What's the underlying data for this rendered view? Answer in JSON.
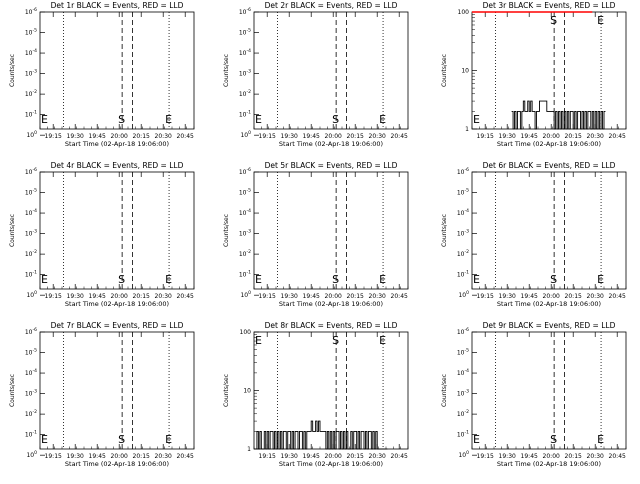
{
  "x_tick_labels": [
    "19:15",
    "19:30",
    "19:45",
    "20:00",
    "20:15",
    "20:30",
    "20:45"
  ],
  "y_tick_labels_log": [
    "10^0",
    "10^-1",
    "10^-2",
    "10^-3",
    "10^-4",
    "10^-5",
    "10^-6"
  ],
  "y_tick_labels_counts": [
    "1",
    "10",
    "100"
  ],
  "xlabel": "Start Time (02-Apr-18 19:06:00)",
  "ylabel": "Counts/sec",
  "markers": {
    "s": "S",
    "e": "E"
  },
  "colors": {
    "events": "#000000",
    "lld": "#ff0000"
  },
  "chart_data": [
    {
      "type": "line",
      "title": "Det 1r BLACK = Events, RED = LLD",
      "y_scale": "log",
      "ylim": [
        0.5,
        1e-06
      ],
      "series": []
    },
    {
      "type": "line",
      "title": "Det 2r BLACK = Events, RED = LLD",
      "y_scale": "log",
      "ylim": [
        0.5,
        1e-06
      ],
      "series": []
    },
    {
      "type": "line",
      "title": "Det 3r BLACK = Events, RED = LLD",
      "y_scale": "log",
      "ylim": [
        1,
        100
      ],
      "series": [
        {
          "name": "Events",
          "color": "#000000",
          "x": [
            "19:33",
            "19:34",
            "19:35",
            "19:36",
            "19:37",
            "19:38",
            "19:39",
            "19:40",
            "19:41",
            "19:42",
            "19:43",
            "19:44",
            "19:45",
            "19:46",
            "19:47",
            "19:48",
            "19:49",
            "19:50",
            "19:51",
            "19:52",
            "19:53",
            "19:54",
            "19:55",
            "19:56",
            "19:57",
            "19:58",
            "19:59",
            "20:00",
            "20:01",
            "20:02",
            "20:03",
            "20:04",
            "20:05",
            "20:06",
            "20:07",
            "20:08",
            "20:09",
            "20:10",
            "20:11",
            "20:12",
            "20:13",
            "20:14",
            "20:15",
            "20:16",
            "20:17",
            "20:18",
            "20:19",
            "20:20",
            "20:21",
            "20:22",
            "20:23",
            "20:24",
            "20:25",
            "20:26",
            "20:27",
            "20:28",
            "20:29",
            "20:30",
            "20:31",
            "20:32",
            "20:33",
            "20:34",
            "20:35",
            "20:36",
            "20:37"
          ],
          "y": [
            2,
            1,
            2,
            1,
            2,
            2,
            1,
            2,
            3,
            2,
            2,
            3,
            2,
            3,
            2,
            2,
            1,
            2,
            2,
            3,
            3,
            3,
            3,
            3,
            2,
            2,
            2,
            2,
            2,
            1,
            2,
            1,
            2,
            1,
            2,
            1,
            2,
            1,
            2,
            1,
            2,
            2,
            1,
            2,
            1,
            2,
            2,
            1,
            2,
            1,
            2,
            1,
            2,
            2,
            1,
            2,
            1,
            2,
            1,
            2,
            1,
            2,
            1,
            2,
            2
          ]
        },
        {
          "name": "LLD",
          "color": "#ff0000",
          "x": [
            "19:06",
            "19:10",
            "19:14",
            "19:18",
            "19:22",
            "19:26",
            "20:00",
            "20:05",
            "20:12",
            "20:16",
            "20:20",
            "20:24",
            "20:28"
          ],
          "y": [
            100,
            100,
            100,
            100,
            100,
            100,
            100,
            100,
            100,
            100,
            100,
            100,
            100
          ]
        }
      ]
    },
    {
      "type": "line",
      "title": "Det 4r BLACK = Events, RED = LLD",
      "y_scale": "log",
      "ylim": [
        0.5,
        1e-06
      ],
      "series": []
    },
    {
      "type": "line",
      "title": "Det 5r BLACK = Events, RED = LLD",
      "y_scale": "log",
      "ylim": [
        0.5,
        1e-06
      ],
      "series": []
    },
    {
      "type": "line",
      "title": "Det 6r BLACK = Events, RED = LLD",
      "y_scale": "log",
      "ylim": [
        0.5,
        1e-06
      ],
      "series": []
    },
    {
      "type": "line",
      "title": "Det 7r BLACK = Events, RED = LLD",
      "y_scale": "log",
      "ylim": [
        0.5,
        1e-06
      ],
      "series": []
    },
    {
      "type": "line",
      "title": "Det 8r BLACK = Events, RED = LLD",
      "y_scale": "log",
      "ylim": [
        1,
        100
      ],
      "series": [
        {
          "name": "Events",
          "color": "#000000",
          "x": [
            "19:06",
            "19:07",
            "19:08",
            "19:09",
            "19:10",
            "19:11",
            "19:12",
            "19:13",
            "19:14",
            "19:15",
            "19:16",
            "19:17",
            "19:18",
            "19:19",
            "19:20",
            "19:21",
            "19:22",
            "19:23",
            "19:24",
            "19:25",
            "19:26",
            "19:27",
            "19:28",
            "19:29",
            "19:30",
            "19:31",
            "19:32",
            "19:33",
            "19:34",
            "19:35",
            "19:36",
            "19:37",
            "19:38",
            "19:39",
            "19:40",
            "19:41",
            "19:42",
            "19:43",
            "19:44",
            "19:45",
            "19:46",
            "19:47",
            "19:48",
            "19:49",
            "19:50",
            "19:51",
            "19:52",
            "19:53",
            "19:54",
            "19:55",
            "19:56",
            "19:57",
            "19:58",
            "19:59",
            "20:00",
            "20:01",
            "20:02",
            "20:03",
            "20:04",
            "20:05",
            "20:06",
            "20:07",
            "20:08",
            "20:09",
            "20:10",
            "20:11",
            "20:12",
            "20:13",
            "20:14",
            "20:15",
            "20:16",
            "20:17",
            "20:18",
            "20:19",
            "20:20",
            "20:21",
            "20:22",
            "20:23",
            "20:24",
            "20:25",
            "20:26",
            "20:27",
            "20:28",
            "20:29",
            "20:30",
            "20:31",
            "20:32",
            "20:33",
            "20:34",
            "20:35",
            "20:36",
            "20:37"
          ],
          "y": [
            1,
            1,
            2,
            1,
            2,
            1,
            1,
            2,
            1,
            2,
            1,
            2,
            2,
            1,
            2,
            1,
            2,
            1,
            2,
            1,
            2,
            2,
            1,
            2,
            2,
            1,
            2,
            1,
            2,
            2,
            1,
            2,
            2,
            1,
            2,
            1,
            2,
            2,
            2,
            3,
            2,
            2,
            3,
            2,
            3,
            2,
            2,
            2,
            2,
            1,
            2,
            1,
            2,
            1,
            2,
            1,
            2,
            2,
            1,
            2,
            1,
            2,
            1,
            2,
            1,
            1,
            2,
            1,
            2,
            2,
            1,
            2,
            1,
            2,
            2,
            1,
            2,
            1,
            2,
            2,
            1,
            2,
            1,
            2,
            1,
            1,
            1,
            1,
            1,
            1,
            1,
            1
          ]
        }
      ]
    },
    {
      "type": "line",
      "title": "Det 9r BLACK = Events, RED = LLD",
      "y_scale": "log",
      "ylim": [
        0.5,
        1e-06
      ],
      "series": []
    }
  ]
}
